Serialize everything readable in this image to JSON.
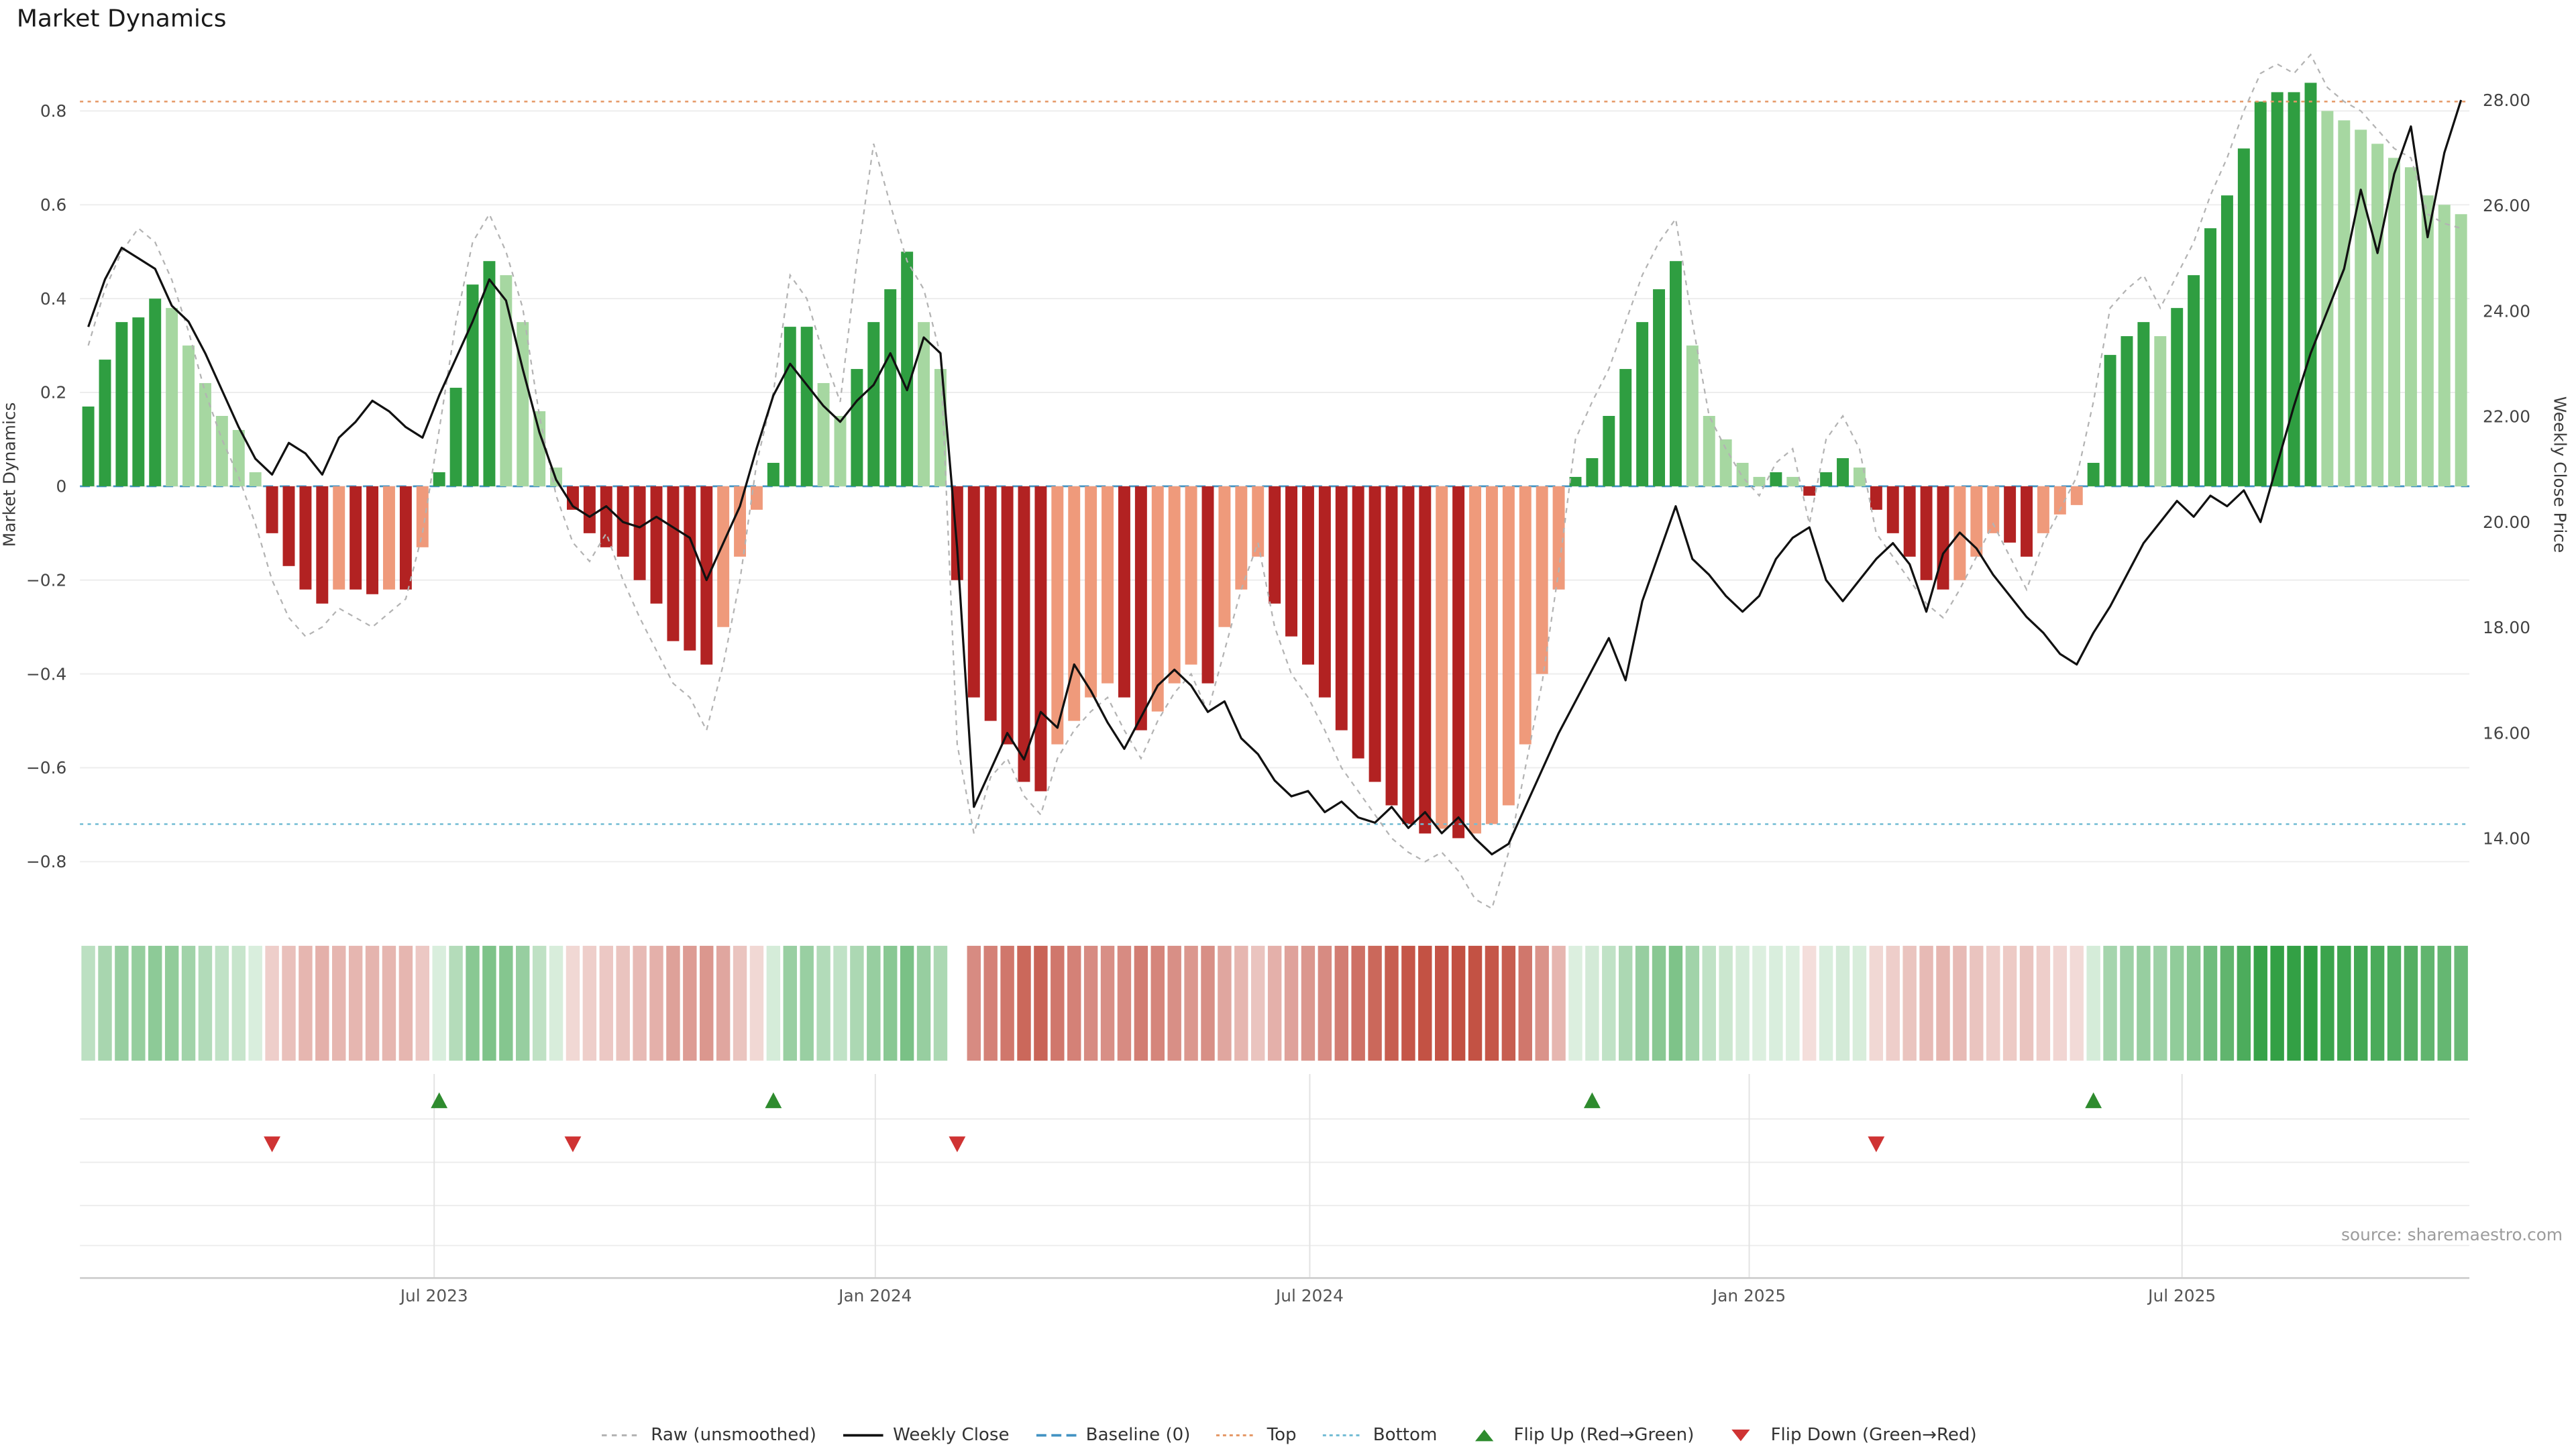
{
  "title": "Market Dynamics",
  "source": "source: sharemaestro.com",
  "colors": {
    "bar_green_dark": "#2f9e41",
    "bar_green_light": "#a6d7a1",
    "bar_red_dark": "#b22222",
    "bar_red_light": "#ef9a7b",
    "weekly_close_line": "#111111",
    "raw_line": "#b3b3b3",
    "baseline": "#4393c3",
    "top_line": "#e59866",
    "bottom_line": "#72bcd4",
    "flip_up": "#2e8b2e",
    "flip_down": "#cf3333",
    "heat_green": "#2f9e41",
    "heat_red": "#bb3a2a",
    "grid": "#ededed",
    "axis_text": "#3c3c3c",
    "tick_text": "#444444",
    "x_tick_text": "#555555"
  },
  "chart_data": {
    "type": "bar+line",
    "title": "Market Dynamics",
    "freq": "weekly",
    "ylabel_left": "Market Dynamics",
    "ylabel_right": "Weekly Close Price",
    "ylim_left": [
      -0.88,
      0.93
    ],
    "ylim_right": [
      12.85,
      28.95
    ],
    "yticks_left": [
      0.8,
      0.6,
      0.4,
      0.2,
      0,
      -0.2,
      -0.4,
      -0.6,
      -0.8
    ],
    "yticks_right": [
      28,
      26,
      24,
      22,
      20,
      18,
      16,
      14
    ],
    "x_ticks": [
      {
        "week": 20.7,
        "label": "Jul 2023"
      },
      {
        "week": 47.1,
        "label": "Jan 2024"
      },
      {
        "week": 73.1,
        "label": "Jul 2024"
      },
      {
        "week": 99.4,
        "label": "Jan 2025"
      },
      {
        "week": 125.3,
        "label": "Jul 2025"
      }
    ],
    "top_level": 0.82,
    "bottom_level": -0.72,
    "baseline": 0,
    "series": {
      "dynamics": [
        0.17,
        0.27,
        0.35,
        0.36,
        0.4,
        0.38,
        0.3,
        0.22,
        0.15,
        0.12,
        0.03,
        -0.1,
        -0.17,
        -0.22,
        -0.25,
        -0.22,
        -0.22,
        -0.23,
        -0.22,
        -0.22,
        -0.13,
        0.03,
        0.21,
        0.43,
        0.48,
        0.45,
        0.35,
        0.16,
        0.04,
        -0.05,
        -0.1,
        -0.13,
        -0.15,
        -0.2,
        -0.25,
        -0.33,
        -0.35,
        -0.38,
        -0.3,
        -0.15,
        -0.05,
        0.05,
        0.34,
        0.34,
        0.22,
        0.15,
        0.25,
        0.35,
        0.42,
        0.5,
        0.35,
        0.25,
        -0.2,
        -0.45,
        -0.5,
        -0.55,
        -0.63,
        -0.65,
        -0.55,
        -0.5,
        -0.45,
        -0.42,
        -0.45,
        -0.52,
        -0.48,
        -0.42,
        -0.38,
        -0.42,
        -0.3,
        -0.22,
        -0.15,
        -0.25,
        -0.32,
        -0.38,
        -0.45,
        -0.52,
        -0.58,
        -0.63,
        -0.68,
        -0.72,
        -0.74,
        -0.73,
        -0.75,
        -0.74,
        -0.72,
        -0.68,
        -0.55,
        -0.4,
        -0.22,
        0.02,
        0.06,
        0.15,
        0.25,
        0.35,
        0.42,
        0.48,
        0.3,
        0.15,
        0.1,
        0.05,
        0.02,
        0.03,
        0.02,
        -0.02,
        0.03,
        0.06,
        0.04,
        -0.05,
        -0.1,
        -0.15,
        -0.2,
        -0.22,
        -0.2,
        -0.15,
        -0.1,
        -0.12,
        -0.15,
        -0.1,
        -0.06,
        -0.04,
        0.05,
        0.28,
        0.32,
        0.35,
        0.32,
        0.38,
        0.45,
        0.55,
        0.62,
        0.72,
        0.82,
        0.84,
        0.84,
        0.86,
        0.8,
        0.78,
        0.76,
        0.73,
        0.7,
        0.68,
        0.62,
        0.6,
        0.58
      ],
      "raw": [
        0.3,
        0.42,
        0.5,
        0.55,
        0.52,
        0.44,
        0.33,
        0.2,
        0.1,
        0.02,
        -0.08,
        -0.2,
        -0.28,
        -0.32,
        -0.3,
        -0.26,
        -0.28,
        -0.3,
        -0.27,
        -0.24,
        -0.1,
        0.12,
        0.35,
        0.52,
        0.58,
        0.5,
        0.38,
        0.15,
        -0.02,
        -0.12,
        -0.16,
        -0.1,
        -0.2,
        -0.28,
        -0.35,
        -0.42,
        -0.45,
        -0.52,
        -0.38,
        -0.2,
        0.05,
        0.2,
        0.45,
        0.4,
        0.28,
        0.18,
        0.48,
        0.73,
        0.6,
        0.48,
        0.42,
        0.28,
        -0.55,
        -0.74,
        -0.62,
        -0.58,
        -0.66,
        -0.7,
        -0.58,
        -0.52,
        -0.48,
        -0.45,
        -0.52,
        -0.58,
        -0.5,
        -0.44,
        -0.4,
        -0.48,
        -0.35,
        -0.22,
        -0.12,
        -0.3,
        -0.4,
        -0.45,
        -0.52,
        -0.6,
        -0.65,
        -0.7,
        -0.75,
        -0.78,
        -0.8,
        -0.78,
        -0.82,
        -0.88,
        -0.9,
        -0.78,
        -0.6,
        -0.42,
        -0.18,
        0.1,
        0.18,
        0.25,
        0.35,
        0.45,
        0.52,
        0.57,
        0.35,
        0.15,
        0.08,
        0.02,
        -0.02,
        0.05,
        0.08,
        -0.08,
        0.1,
        0.15,
        0.08,
        -0.1,
        -0.15,
        -0.2,
        -0.25,
        -0.28,
        -0.22,
        -0.15,
        -0.08,
        -0.15,
        -0.22,
        -0.12,
        -0.05,
        0.02,
        0.18,
        0.38,
        0.42,
        0.45,
        0.38,
        0.45,
        0.52,
        0.62,
        0.7,
        0.8,
        0.88,
        0.9,
        0.88,
        0.92,
        0.85,
        0.82,
        0.8,
        0.76,
        0.72,
        0.7,
        0.58,
        0.56,
        0.55
      ],
      "weekly_close": [
        23.7,
        24.6,
        25.2,
        25.0,
        24.8,
        24.1,
        23.8,
        23.2,
        22.5,
        21.8,
        21.2,
        20.9,
        21.5,
        21.3,
        20.9,
        21.6,
        21.9,
        22.3,
        22.1,
        21.8,
        21.6,
        22.4,
        23.1,
        23.8,
        24.6,
        24.2,
        22.9,
        21.7,
        20.8,
        20.3,
        20.1,
        20.3,
        20.0,
        19.9,
        20.1,
        19.9,
        19.7,
        18.9,
        19.6,
        20.3,
        21.4,
        22.4,
        23.0,
        22.6,
        22.2,
        21.9,
        22.3,
        22.6,
        23.2,
        22.5,
        23.5,
        23.2,
        19.5,
        14.6,
        15.3,
        16.0,
        15.5,
        16.4,
        16.1,
        17.3,
        16.8,
        16.2,
        15.7,
        16.3,
        16.9,
        17.2,
        16.9,
        16.4,
        16.6,
        15.9,
        15.6,
        15.1,
        14.8,
        14.9,
        14.5,
        14.7,
        14.4,
        14.3,
        14.6,
        14.2,
        14.5,
        14.1,
        14.4,
        14.0,
        13.7,
        13.9,
        14.6,
        15.3,
        16.0,
        16.6,
        17.2,
        17.8,
        17.0,
        18.5,
        19.4,
        20.3,
        19.3,
        19.0,
        18.6,
        18.3,
        18.6,
        19.3,
        19.7,
        19.9,
        18.9,
        18.5,
        18.9,
        19.3,
        19.6,
        19.2,
        18.3,
        19.4,
        19.8,
        19.5,
        19.0,
        18.6,
        18.2,
        17.9,
        17.5,
        17.3,
        17.9,
        18.4,
        19.0,
        19.6,
        20.0,
        20.4,
        20.1,
        20.5,
        20.3,
        20.6,
        20.0,
        21.1,
        22.2,
        23.2,
        24.0,
        24.8,
        26.3,
        25.1,
        26.6,
        27.5,
        25.4,
        27.0,
        28.0
      ]
    },
    "flip_up_weeks": [
      21,
      41,
      90,
      120
    ],
    "flip_down_weeks": [
      11,
      29,
      52,
      107
    ],
    "heatmap_gap_weeks": [
      52
    ]
  },
  "legend": {
    "items": [
      {
        "id": "raw",
        "label": "Raw (unsmoothed)"
      },
      {
        "id": "weekly_close",
        "label": "Weekly Close"
      },
      {
        "id": "baseline",
        "label": "Baseline (0)"
      },
      {
        "id": "top",
        "label": "Top"
      },
      {
        "id": "bottom",
        "label": "Bottom"
      },
      {
        "id": "flip_up",
        "label": "Flip Up (Red→Green)"
      },
      {
        "id": "flip_down",
        "label": "Flip Down (Green→Red)"
      }
    ]
  }
}
